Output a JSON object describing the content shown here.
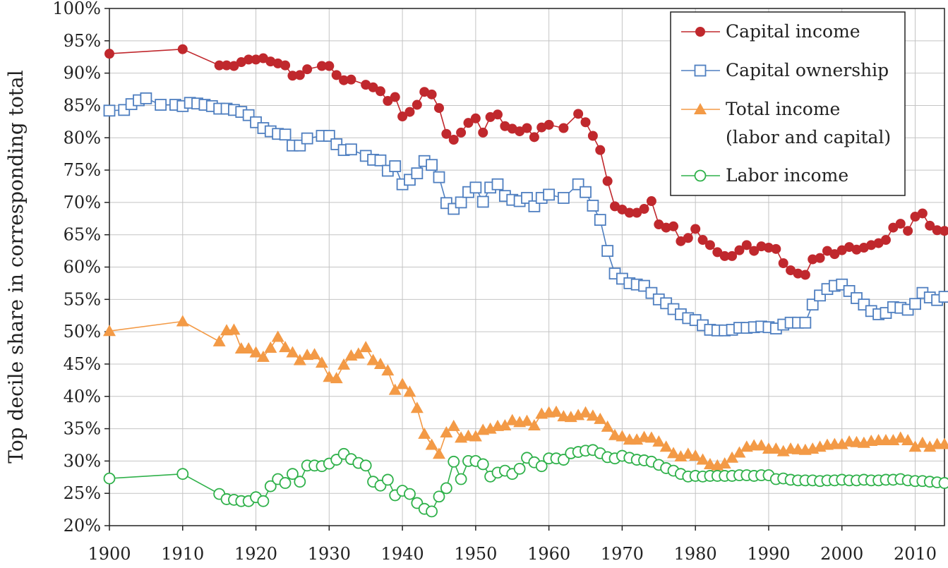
{
  "chart_data": {
    "type": "line",
    "ylabel": "Top decile share in corresponding total",
    "xlim": [
      1900,
      2014
    ],
    "ylim": [
      0.2,
      1.0
    ],
    "x_ticks": [
      1900,
      1910,
      1920,
      1930,
      1940,
      1950,
      1960,
      1970,
      1980,
      1990,
      2000,
      2010
    ],
    "x_tick_labels": [
      "1900",
      "1910",
      "1920",
      "1930",
      "1940",
      "1950",
      "1960",
      "1970",
      "1980",
      "1990",
      "2000",
      "2010"
    ],
    "y_ticks": [
      0.2,
      0.25,
      0.3,
      0.35,
      0.4,
      0.45,
      0.5,
      0.55,
      0.6,
      0.65,
      0.7,
      0.75,
      0.8,
      0.85,
      0.9,
      0.95,
      1.0
    ],
    "y_tick_labels": [
      "20%",
      "25%",
      "30%",
      "35%",
      "40%",
      "45%",
      "50%",
      "55%",
      "60%",
      "65%",
      "70%",
      "75%",
      "80%",
      "85%",
      "90%",
      "95%",
      "100%"
    ],
    "grid": true,
    "legend_position": "top-right",
    "series": [
      {
        "name": "Capital income",
        "legend_lines": [
          "Capital income"
        ],
        "color": "#c0282d",
        "marker": "filled-circle",
        "x": [
          1900,
          1910,
          1915,
          1916,
          1917,
          1918,
          1919,
          1920,
          1921,
          1922,
          1923,
          1924,
          1925,
          1926,
          1927,
          1929,
          1930,
          1931,
          1932,
          1933,
          1935,
          1936,
          1937,
          1938,
          1939,
          1940,
          1941,
          1942,
          1943,
          1944,
          1945,
          1946,
          1947,
          1948,
          1949,
          1950,
          1951,
          1952,
          1953,
          1954,
          1955,
          1956,
          1957,
          1958,
          1959,
          1960,
          1962,
          1964,
          1965,
          1966,
          1967,
          1968,
          1969,
          1970,
          1971,
          1972,
          1973,
          1974,
          1975,
          1976,
          1977,
          1978,
          1979,
          1980,
          1981,
          1982,
          1983,
          1984,
          1985,
          1986,
          1987,
          1988,
          1989,
          1990,
          1991,
          1992,
          1993,
          1994,
          1995,
          1996,
          1997,
          1998,
          1999,
          2000,
          2001,
          2002,
          2003,
          2004,
          2005,
          2006,
          2007,
          2008,
          2009,
          2010,
          2011,
          2012,
          2013,
          2014
        ],
        "values": [
          0.93,
          0.937,
          0.912,
          0.912,
          0.911,
          0.917,
          0.921,
          0.921,
          0.923,
          0.918,
          0.915,
          0.912,
          0.896,
          0.897,
          0.906,
          0.911,
          0.911,
          0.897,
          0.889,
          0.89,
          0.882,
          0.878,
          0.872,
          0.857,
          0.863,
          0.833,
          0.84,
          0.851,
          0.871,
          0.867,
          0.846,
          0.806,
          0.797,
          0.808,
          0.823,
          0.83,
          0.808,
          0.832,
          0.836,
          0.818,
          0.814,
          0.81,
          0.815,
          0.801,
          0.816,
          0.82,
          0.815,
          0.837,
          0.824,
          0.803,
          0.781,
          0.733,
          0.694,
          0.689,
          0.684,
          0.684,
          0.69,
          0.702,
          0.666,
          0.661,
          0.663,
          0.64,
          0.645,
          0.659,
          0.642,
          0.634,
          0.623,
          0.617,
          0.617,
          0.626,
          0.634,
          0.625,
          0.632,
          0.63,
          0.628,
          0.606,
          0.595,
          0.59,
          0.588,
          0.612,
          0.614,
          0.625,
          0.62,
          0.626,
          0.631,
          0.627,
          0.63,
          0.634,
          0.637,
          0.642,
          0.661,
          0.667,
          0.656,
          0.678,
          0.683,
          0.664,
          0.657,
          0.656
        ]
      },
      {
        "name": "Capital ownership",
        "legend_lines": [
          "Capital ownership"
        ],
        "color": "#4f7fc0",
        "marker": "open-square",
        "x": [
          1900,
          1902,
          1903,
          1904,
          1905,
          1907,
          1909,
          1910,
          1911,
          1912,
          1913,
          1914,
          1915,
          1916,
          1917,
          1918,
          1919,
          1920,
          1921,
          1922,
          1923,
          1924,
          1925,
          1926,
          1927,
          1929,
          1930,
          1931,
          1932,
          1933,
          1935,
          1936,
          1937,
          1938,
          1939,
          1940,
          1941,
          1942,
          1943,
          1944,
          1945,
          1946,
          1947,
          1948,
          1949,
          1950,
          1951,
          1952,
          1953,
          1954,
          1955,
          1956,
          1957,
          1958,
          1959,
          1960,
          1962,
          1964,
          1965,
          1966,
          1967,
          1968,
          1969,
          1970,
          1971,
          1972,
          1973,
          1974,
          1975,
          1976,
          1977,
          1978,
          1979,
          1980,
          1981,
          1982,
          1983,
          1984,
          1985,
          1986,
          1987,
          1988,
          1989,
          1990,
          1991,
          1992,
          1993,
          1994,
          1995,
          1996,
          1997,
          1998,
          1999,
          2000,
          2001,
          2002,
          2003,
          2004,
          2005,
          2006,
          2007,
          2008,
          2009,
          2010,
          2011,
          2012,
          2013,
          2014
        ],
        "values": [
          0.842,
          0.843,
          0.852,
          0.858,
          0.861,
          0.851,
          0.851,
          0.849,
          0.854,
          0.853,
          0.851,
          0.849,
          0.845,
          0.845,
          0.843,
          0.84,
          0.835,
          0.824,
          0.815,
          0.81,
          0.806,
          0.805,
          0.788,
          0.788,
          0.799,
          0.803,
          0.803,
          0.79,
          0.781,
          0.782,
          0.772,
          0.766,
          0.765,
          0.749,
          0.756,
          0.728,
          0.735,
          0.745,
          0.764,
          0.758,
          0.739,
          0.699,
          0.69,
          0.7,
          0.716,
          0.723,
          0.701,
          0.723,
          0.728,
          0.71,
          0.704,
          0.702,
          0.707,
          0.694,
          0.707,
          0.712,
          0.707,
          0.728,
          0.716,
          0.695,
          0.673,
          0.625,
          0.59,
          0.582,
          0.575,
          0.573,
          0.571,
          0.56,
          0.55,
          0.544,
          0.535,
          0.527,
          0.521,
          0.518,
          0.51,
          0.503,
          0.502,
          0.502,
          0.503,
          0.506,
          0.506,
          0.507,
          0.508,
          0.507,
          0.505,
          0.511,
          0.514,
          0.514,
          0.514,
          0.542,
          0.556,
          0.566,
          0.571,
          0.573,
          0.563,
          0.552,
          0.542,
          0.532,
          0.527,
          0.529,
          0.538,
          0.537,
          0.534,
          0.543,
          0.56,
          0.553,
          0.549,
          0.554
        ]
      },
      {
        "name": "Total income (labor and capital)",
        "legend_lines": [
          "Total income",
          "(labor and capital)"
        ],
        "color": "#f39a46",
        "marker": "filled-triangle",
        "x": [
          1900,
          1910,
          1915,
          1916,
          1917,
          1918,
          1919,
          1920,
          1921,
          1922,
          1923,
          1924,
          1925,
          1926,
          1927,
          1928,
          1929,
          1930,
          1931,
          1932,
          1933,
          1934,
          1935,
          1936,
          1937,
          1938,
          1939,
          1940,
          1941,
          1942,
          1943,
          1944,
          1945,
          1946,
          1947,
          1948,
          1949,
          1950,
          1951,
          1952,
          1953,
          1954,
          1955,
          1956,
          1957,
          1958,
          1959,
          1960,
          1961,
          1962,
          1963,
          1964,
          1965,
          1966,
          1967,
          1968,
          1969,
          1970,
          1971,
          1972,
          1973,
          1974,
          1975,
          1976,
          1977,
          1978,
          1979,
          1980,
          1981,
          1982,
          1983,
          1984,
          1985,
          1986,
          1987,
          1988,
          1989,
          1990,
          1991,
          1992,
          1993,
          1994,
          1995,
          1996,
          1997,
          1998,
          1999,
          2000,
          2001,
          2002,
          2003,
          2004,
          2005,
          2006,
          2007,
          2008,
          2009,
          2010,
          2011,
          2012,
          2013,
          2014
        ],
        "values": [
          0.501,
          0.516,
          0.485,
          0.502,
          0.503,
          0.474,
          0.474,
          0.468,
          0.461,
          0.475,
          0.492,
          0.476,
          0.468,
          0.456,
          0.464,
          0.465,
          0.452,
          0.43,
          0.428,
          0.449,
          0.463,
          0.466,
          0.476,
          0.456,
          0.45,
          0.44,
          0.41,
          0.419,
          0.407,
          0.382,
          0.342,
          0.325,
          0.311,
          0.344,
          0.354,
          0.336,
          0.339,
          0.338,
          0.348,
          0.35,
          0.354,
          0.355,
          0.363,
          0.36,
          0.362,
          0.355,
          0.373,
          0.375,
          0.376,
          0.369,
          0.368,
          0.371,
          0.375,
          0.37,
          0.365,
          0.353,
          0.34,
          0.338,
          0.333,
          0.333,
          0.337,
          0.336,
          0.33,
          0.322,
          0.312,
          0.307,
          0.311,
          0.308,
          0.302,
          0.295,
          0.293,
          0.296,
          0.305,
          0.313,
          0.322,
          0.324,
          0.324,
          0.319,
          0.319,
          0.315,
          0.319,
          0.318,
          0.317,
          0.319,
          0.322,
          0.325,
          0.326,
          0.326,
          0.33,
          0.329,
          0.328,
          0.331,
          0.332,
          0.332,
          0.332,
          0.336,
          0.332,
          0.322,
          0.328,
          0.322,
          0.326,
          0.326
        ]
      },
      {
        "name": "Labor income",
        "legend_lines": [
          "Labor income"
        ],
        "color": "#2fb14a",
        "marker": "open-circle",
        "x": [
          1900,
          1910,
          1915,
          1916,
          1917,
          1918,
          1919,
          1920,
          1921,
          1922,
          1923,
          1924,
          1925,
          1926,
          1927,
          1928,
          1929,
          1930,
          1931,
          1932,
          1933,
          1934,
          1935,
          1936,
          1937,
          1938,
          1939,
          1940,
          1941,
          1942,
          1943,
          1944,
          1945,
          1946,
          1947,
          1948,
          1949,
          1950,
          1951,
          1952,
          1953,
          1954,
          1955,
          1956,
          1957,
          1958,
          1959,
          1960,
          1961,
          1962,
          1963,
          1964,
          1965,
          1966,
          1967,
          1968,
          1969,
          1970,
          1971,
          1972,
          1973,
          1974,
          1975,
          1976,
          1977,
          1978,
          1979,
          1980,
          1981,
          1982,
          1983,
          1984,
          1985,
          1986,
          1987,
          1988,
          1989,
          1990,
          1991,
          1992,
          1993,
          1994,
          1995,
          1996,
          1997,
          1998,
          1999,
          2000,
          2001,
          2002,
          2003,
          2004,
          2005,
          2006,
          2007,
          2008,
          2009,
          2010,
          2011,
          2012,
          2013,
          2014
        ],
        "values": [
          0.273,
          0.28,
          0.249,
          0.241,
          0.24,
          0.238,
          0.238,
          0.244,
          0.238,
          0.261,
          0.272,
          0.266,
          0.28,
          0.268,
          0.293,
          0.293,
          0.292,
          0.296,
          0.302,
          0.311,
          0.303,
          0.297,
          0.293,
          0.268,
          0.262,
          0.271,
          0.247,
          0.254,
          0.249,
          0.235,
          0.226,
          0.222,
          0.245,
          0.258,
          0.299,
          0.272,
          0.3,
          0.3,
          0.295,
          0.276,
          0.282,
          0.285,
          0.28,
          0.288,
          0.305,
          0.298,
          0.292,
          0.304,
          0.304,
          0.302,
          0.312,
          0.314,
          0.316,
          0.317,
          0.312,
          0.306,
          0.304,
          0.308,
          0.305,
          0.302,
          0.301,
          0.299,
          0.294,
          0.289,
          0.285,
          0.28,
          0.276,
          0.277,
          0.276,
          0.277,
          0.277,
          0.277,
          0.277,
          0.278,
          0.278,
          0.277,
          0.278,
          0.278,
          0.272,
          0.273,
          0.271,
          0.27,
          0.27,
          0.27,
          0.269,
          0.27,
          0.27,
          0.271,
          0.27,
          0.27,
          0.271,
          0.27,
          0.27,
          0.271,
          0.271,
          0.272,
          0.27,
          0.269,
          0.269,
          0.268,
          0.267,
          0.266
        ]
      }
    ]
  }
}
